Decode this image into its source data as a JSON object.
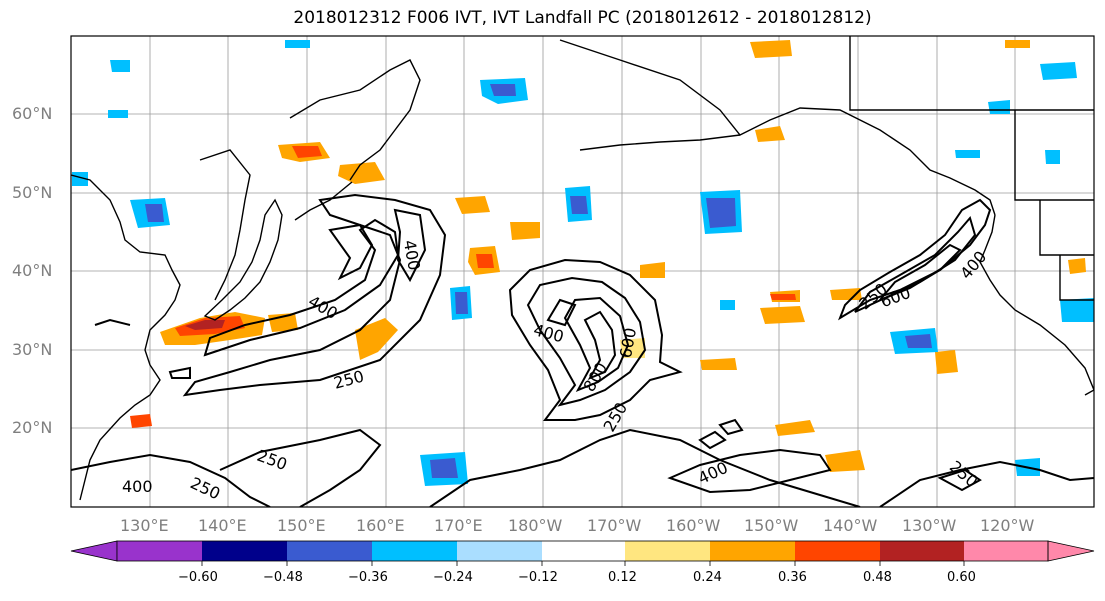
{
  "title": "2018012312 F006 IVT, IVT Landfall PC (2018012612 - 2018012812)",
  "lat_labels": [
    "60°N",
    "50°N",
    "40°N",
    "30°N",
    "20°N"
  ],
  "lon_labels": [
    "130°E",
    "140°E",
    "150°E",
    "160°E",
    "170°E",
    "180°W",
    "170°W",
    "160°W",
    "150°W",
    "140°W",
    "130°W",
    "120°W"
  ],
  "contour_labels": [
    "400",
    "400",
    "250",
    "400",
    "600",
    "800",
    "250",
    "250",
    "600",
    "400",
    "250",
    "400",
    "250",
    "400",
    "250"
  ],
  "colorbar": {
    "ticks": [
      "−0.60",
      "−0.48",
      "−0.36",
      "−0.24",
      "−0.12",
      "0.12",
      "0.24",
      "0.36",
      "0.48",
      "0.60"
    ],
    "colors": [
      "#9933cc",
      "#00008b",
      "#3a5bd0",
      "#00bfff",
      "#aadeff",
      "#ffffff",
      "#ffe680",
      "#ffa500",
      "#ff4500",
      "#b22222",
      "#ff88aa"
    ]
  },
  "map_extent": {
    "lon_min": 120,
    "lon_max": 250,
    "lat_min": 10,
    "lat_max": 70
  }
}
